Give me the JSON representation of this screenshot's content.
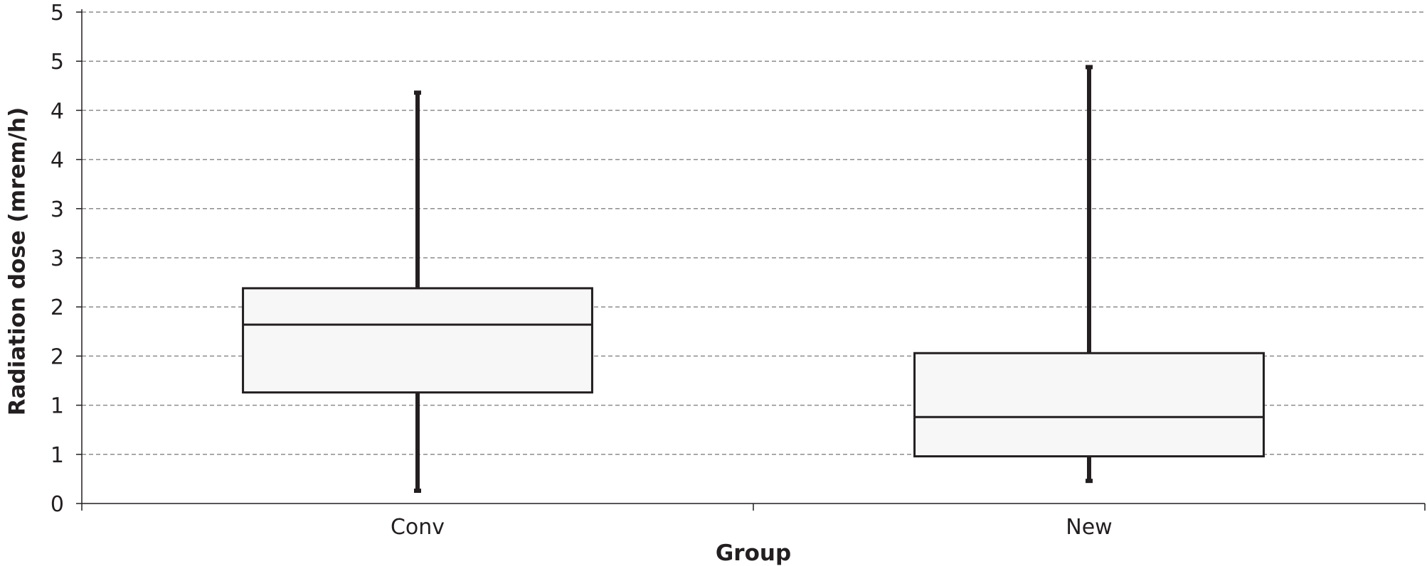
{
  "chart_data": {
    "type": "boxplot",
    "xlabel": "Group",
    "ylabel": "Radiation dose (mrem/h)",
    "ylim": [
      0,
      5
    ],
    "ytick_values": [
      0,
      0.5,
      1,
      1.5,
      2,
      2.5,
      3,
      3.5,
      4,
      4.5,
      5
    ],
    "ytick_labels": [
      "0",
      "1",
      "1",
      "2",
      "2",
      "3",
      "3",
      "4",
      "4",
      "5",
      "5"
    ],
    "grid": true,
    "categories": [
      "Conv",
      "New"
    ],
    "boxes": [
      {
        "category": "Conv",
        "min": 0.13,
        "q1": 1.13,
        "median": 1.82,
        "q3": 2.19,
        "max": 4.18
      },
      {
        "category": "New",
        "min": 0.23,
        "q1": 0.48,
        "median": 0.88,
        "q3": 1.53,
        "max": 4.44
      }
    ]
  }
}
